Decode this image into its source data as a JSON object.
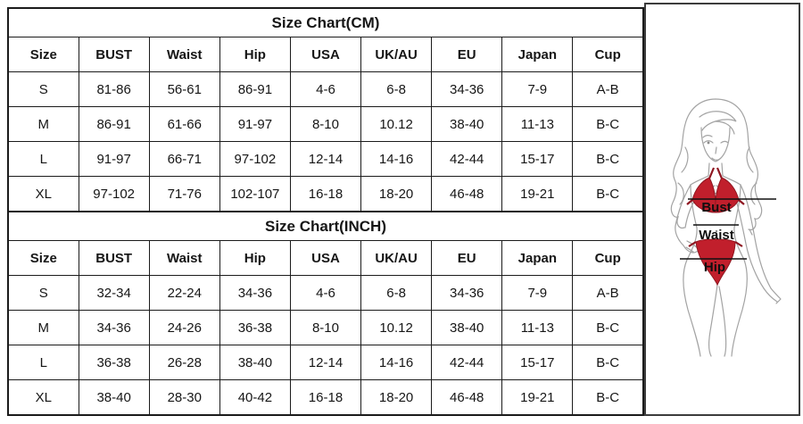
{
  "tables": [
    {
      "title": "Size Chart(CM)",
      "columns": [
        "Size",
        "BUST",
        "Waist",
        "Hip",
        "USA",
        "UK/AU",
        "EU",
        "Japan",
        "Cup"
      ],
      "rows": [
        [
          "S",
          "81-86",
          "56-61",
          "86-91",
          "4-6",
          "6-8",
          "34-36",
          "7-9",
          "A-B"
        ],
        [
          "M",
          "86-91",
          "61-66",
          "91-97",
          "8-10",
          "10.12",
          "38-40",
          "11-13",
          "B-C"
        ],
        [
          "L",
          "91-97",
          "66-71",
          "97-102",
          "12-14",
          "14-16",
          "42-44",
          "15-17",
          "B-C"
        ],
        [
          "XL",
          "97-102",
          "71-76",
          "102-107",
          "16-18",
          "18-20",
          "46-48",
          "19-21",
          "B-C"
        ]
      ]
    },
    {
      "title": "Size Chart(INCH)",
      "columns": [
        "Size",
        "BUST",
        "Waist",
        "Hip",
        "USA",
        "UK/AU",
        "EU",
        "Japan",
        "Cup"
      ],
      "rows": [
        [
          "S",
          "32-34",
          "22-24",
          "34-36",
          "4-6",
          "6-8",
          "34-36",
          "7-9",
          "A-B"
        ],
        [
          "M",
          "34-36",
          "24-26",
          "36-38",
          "8-10",
          "10.12",
          "38-40",
          "11-13",
          "B-C"
        ],
        [
          "L",
          "36-38",
          "26-28",
          "38-40",
          "12-14",
          "14-16",
          "42-44",
          "15-17",
          "B-C"
        ],
        [
          "XL",
          "38-40",
          "28-30",
          "40-42",
          "16-18",
          "18-20",
          "46-48",
          "19-21",
          "B-C"
        ]
      ]
    }
  ],
  "figure": {
    "labels": {
      "bust": "Bust",
      "waist": "Waist",
      "hip": "Hip"
    },
    "colors": {
      "bikini_red": "#c11f2c",
      "line_art_gray": "#a3a3a3",
      "measure_line": "#111111"
    }
  }
}
